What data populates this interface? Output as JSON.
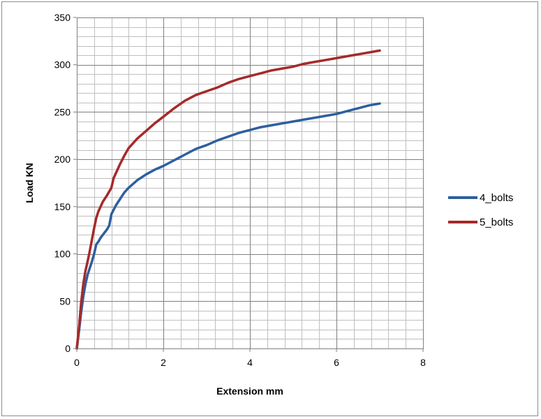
{
  "chart_data": {
    "type": "line",
    "title": "",
    "xlabel": "Extension mm",
    "ylabel": "Load KN",
    "xlim": [
      0,
      8
    ],
    "ylim": [
      0,
      350
    ],
    "xticks": [
      0,
      2,
      4,
      6,
      8
    ],
    "yticks": [
      0,
      50,
      100,
      150,
      200,
      250,
      300,
      350
    ],
    "grid": true,
    "legend_position": "right",
    "series": [
      {
        "name": "4_bolts",
        "color": "#2e5f9e",
        "x": [
          0,
          0.05,
          0.1,
          0.15,
          0.2,
          0.25,
          0.3,
          0.35,
          0.4,
          0.45,
          0.5,
          0.55,
          0.6,
          0.7,
          0.75,
          0.8,
          0.9,
          1.0,
          1.1,
          1.2,
          1.4,
          1.6,
          1.8,
          2.0,
          2.25,
          2.5,
          2.75,
          3.0,
          3.25,
          3.5,
          3.75,
          4.0,
          4.25,
          4.5,
          4.75,
          5.0,
          5.25,
          5.5,
          5.75,
          6.0,
          6.25,
          6.5,
          6.75,
          7.0
        ],
        "y": [
          0,
          18,
          38,
          55,
          68,
          78,
          85,
          92,
          100,
          110,
          113,
          117,
          120,
          126,
          130,
          142,
          151,
          158,
          165,
          170,
          178,
          184,
          189,
          193,
          199,
          205,
          211,
          215,
          220,
          224,
          228,
          231,
          234,
          236,
          238,
          240,
          242,
          244,
          246,
          248,
          251,
          254,
          257,
          259
        ]
      },
      {
        "name": "5_bolts",
        "color": "#a52a2a",
        "x": [
          0,
          0.05,
          0.1,
          0.15,
          0.2,
          0.25,
          0.3,
          0.35,
          0.4,
          0.45,
          0.5,
          0.6,
          0.7,
          0.8,
          0.85,
          0.9,
          1.0,
          1.1,
          1.2,
          1.4,
          1.6,
          1.8,
          2.0,
          2.25,
          2.5,
          2.75,
          3.0,
          3.25,
          3.5,
          3.75,
          4.0,
          4.25,
          4.5,
          4.75,
          5.0,
          5.25,
          5.5,
          5.75,
          6.0,
          6.25,
          6.5,
          6.75,
          7.0
        ],
        "y": [
          0,
          22,
          48,
          68,
          82,
          92,
          103,
          115,
          127,
          138,
          145,
          155,
          162,
          170,
          180,
          185,
          195,
          204,
          212,
          222,
          230,
          238,
          245,
          254,
          262,
          268,
          272,
          276,
          281,
          285,
          288,
          291,
          294,
          296,
          298,
          301,
          303,
          305,
          307,
          309,
          311,
          313,
          315
        ]
      }
    ]
  }
}
